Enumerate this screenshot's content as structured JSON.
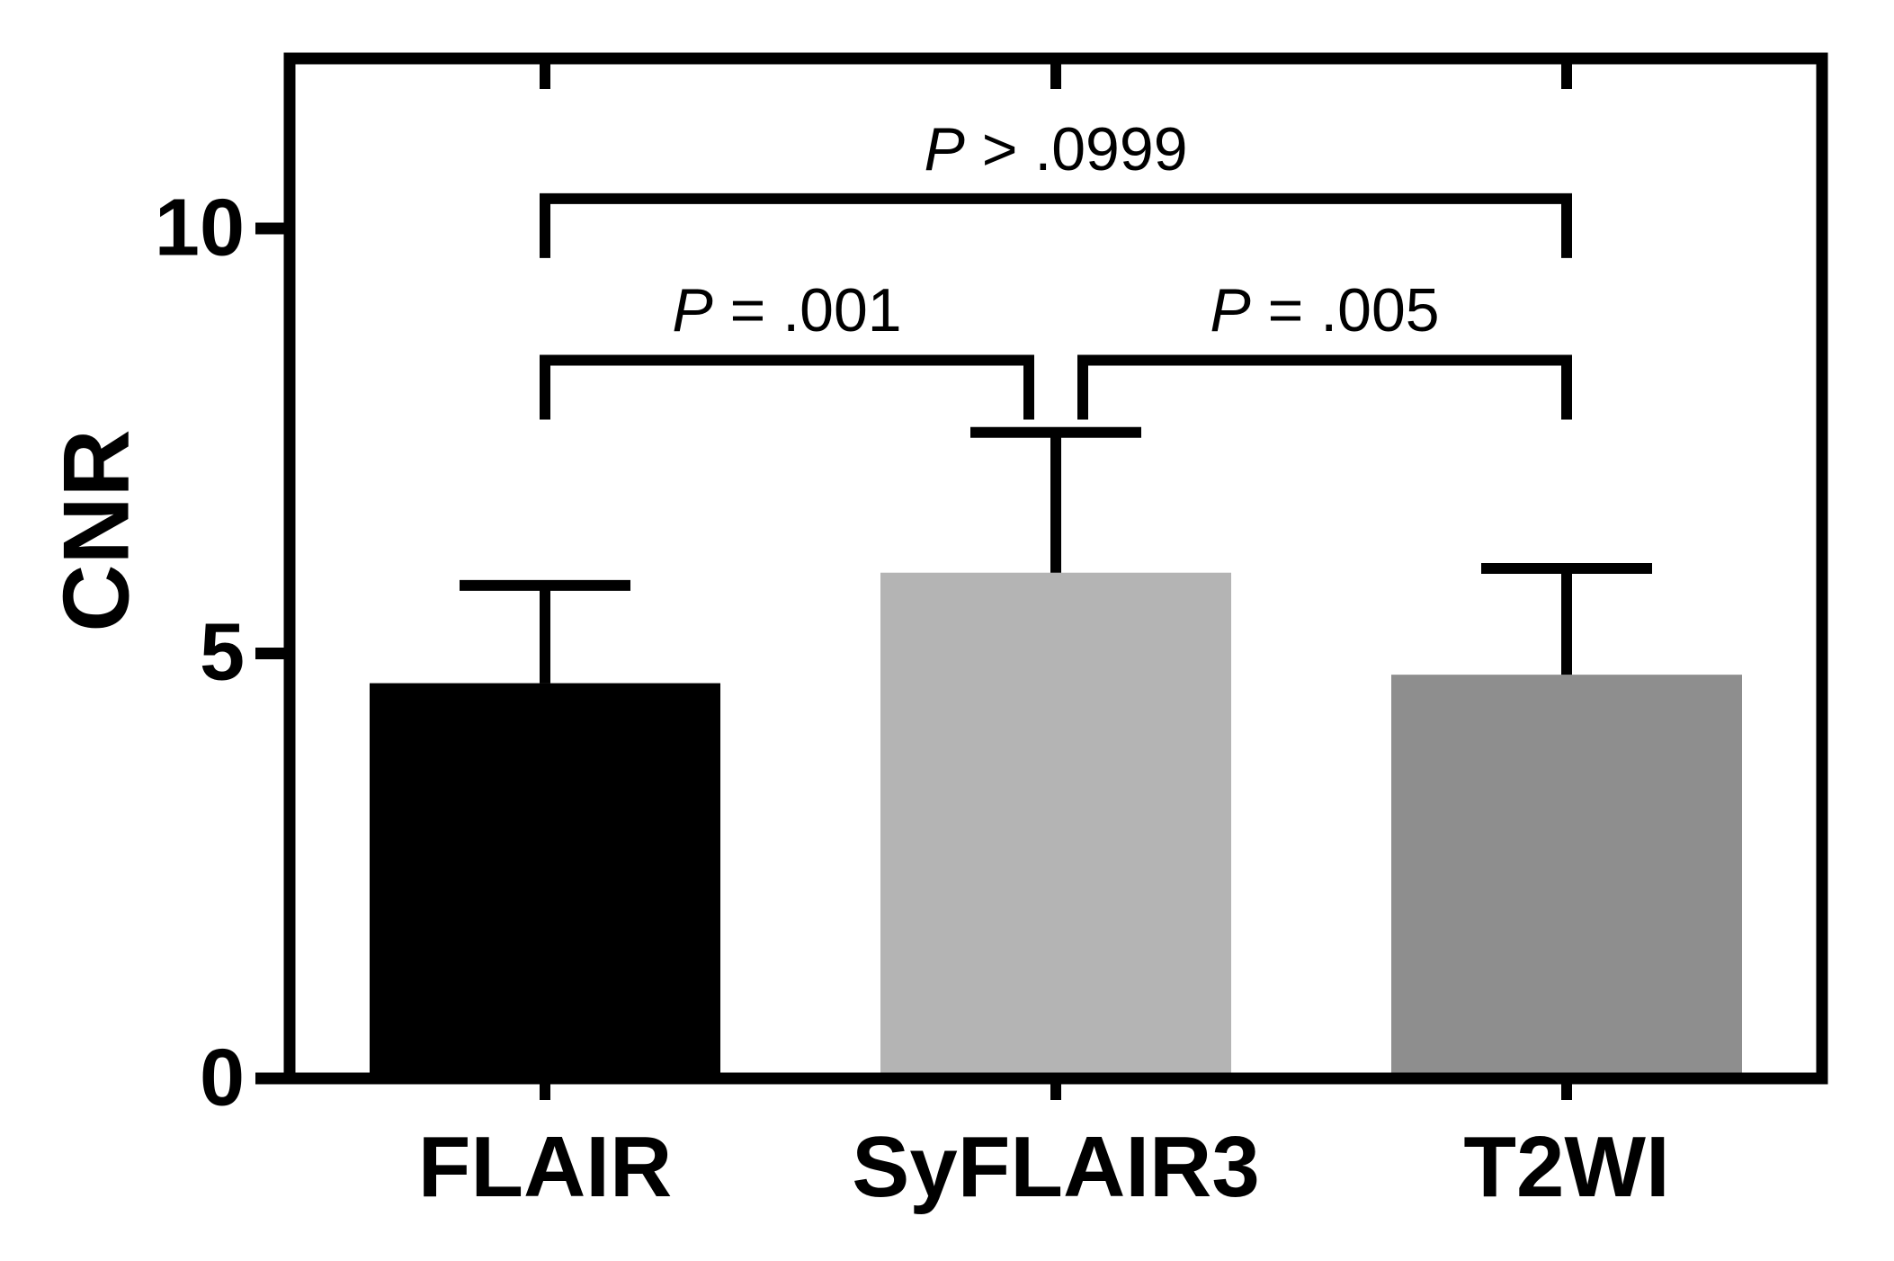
{
  "chart_data": {
    "type": "bar",
    "title": "",
    "xlabel": "",
    "ylabel": "CNR",
    "categories": [
      "FLAIR",
      "SyFLAIR3",
      "T2WI"
    ],
    "values": [
      4.65,
      5.95,
      4.75
    ],
    "errors_upper": [
      1.15,
      1.65,
      1.25
    ],
    "bar_colors": [
      "#000000",
      "#b4b4b4",
      "#8e8e8e"
    ],
    "ylim": [
      0,
      12
    ],
    "yticks": [
      0,
      5,
      10
    ],
    "grid": false,
    "legend": "none",
    "axis_color": "#000000",
    "error_color": "#000000",
    "background": "#ffffff",
    "significance": [
      {
        "from": 0,
        "to": 1,
        "height": 8.45,
        "p": "P",
        "rest": " = .001"
      },
      {
        "from": 1,
        "to": 2,
        "height": 8.45,
        "p": "P",
        "rest": " = .005"
      },
      {
        "from": 0,
        "to": 2,
        "height": 10.35,
        "p": "P",
        "rest": " > .0999"
      }
    ]
  }
}
